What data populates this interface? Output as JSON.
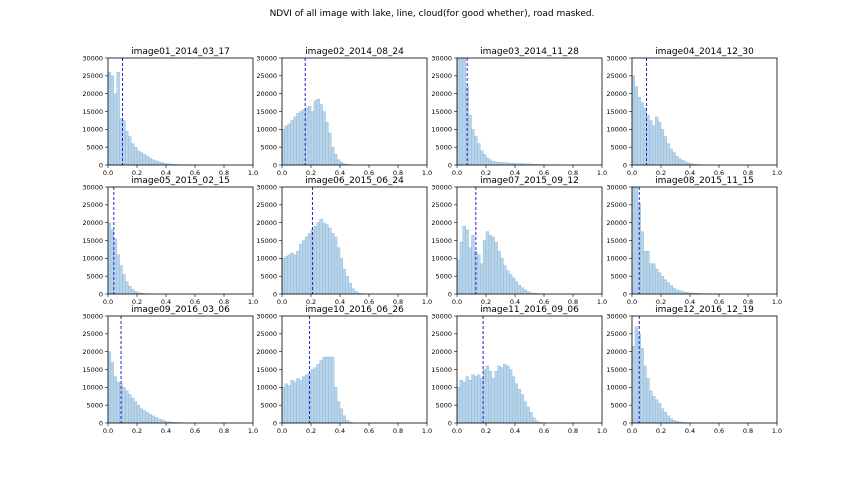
{
  "suptitle": "NDVI of all image with lake, line, cloud(for good whether), road masked.",
  "chart_data": {
    "type": "bar",
    "xlim": [
      0.0,
      1.0
    ],
    "ylim": [
      0,
      30000
    ],
    "x_ticks": [
      "0.0",
      "0.2",
      "0.4",
      "0.6",
      "0.8",
      "1.0"
    ],
    "y_ticks": [
      "0",
      "5000",
      "10000",
      "15000",
      "20000",
      "25000",
      "30000"
    ],
    "bin_width": 0.02,
    "bin_start": 0.0,
    "colors": {
      "bar_fill": "#b9d3e8",
      "bar_edge": "#7fb2d6",
      "mean_line": "#1f1fd6"
    },
    "panels": [
      {
        "title": "image01_2014_03_17",
        "mean": 0.1,
        "values": [
          26000,
          25000,
          20000,
          26000,
          13000,
          12500,
          9500,
          8000,
          6000,
          5000,
          4000,
          3500,
          3000,
          2500,
          2000,
          1500,
          1200,
          900,
          700,
          500,
          400,
          300,
          200,
          150,
          100,
          80,
          50,
          30,
          20,
          10
        ]
      },
      {
        "title": "image02_2014_08_24",
        "mean": 0.16,
        "values": [
          10000,
          11000,
          11500,
          12500,
          13500,
          14500,
          15000,
          15500,
          16000,
          16500,
          15000,
          18000,
          18500,
          17000,
          15000,
          12000,
          9000,
          5000,
          3000,
          1500,
          800,
          400,
          200,
          100,
          50
        ]
      },
      {
        "title": "image03_2014_11_28",
        "mean": 0.07,
        "values": [
          30000,
          30000,
          30000,
          22000,
          14000,
          10000,
          8000,
          6000,
          4000,
          3000,
          2000,
          1500,
          1000,
          900,
          800,
          700,
          600,
          600,
          500,
          500,
          400,
          400,
          400,
          300,
          300,
          300,
          200,
          200,
          150,
          100,
          100,
          80,
          60,
          40,
          20
        ]
      },
      {
        "title": "image04_2014_12_30",
        "mean": 0.1,
        "values": [
          25000,
          22000,
          19000,
          17500,
          16000,
          14000,
          12500,
          11000,
          13500,
          12000,
          10000,
          8000,
          6000,
          4500,
          3500,
          2500,
          1800,
          1300,
          900,
          600,
          400,
          250,
          150,
          100,
          50
        ]
      },
      {
        "title": "image05_2015_02_15",
        "mean": 0.04,
        "values": [
          20000,
          18000,
          15500,
          11000,
          8000,
          5500,
          3500,
          2200,
          1300,
          700,
          400,
          250,
          150,
          80,
          40,
          20
        ]
      },
      {
        "title": "image06_2015_06_24",
        "mean": 0.21,
        "values": [
          10000,
          10500,
          11000,
          11500,
          11000,
          12000,
          14000,
          15000,
          16000,
          17000,
          18000,
          19000,
          20000,
          21000,
          20000,
          19500,
          18500,
          17000,
          16000,
          13000,
          10000,
          7000,
          5000,
          3000,
          1500,
          700,
          300,
          100
        ]
      },
      {
        "title": "image07_2015_09_12",
        "mean": 0.13,
        "values": [
          9500,
          14500,
          19000,
          18000,
          13000,
          16500,
          12000,
          11000,
          8500,
          15000,
          17500,
          16500,
          16000,
          14500,
          12000,
          10000,
          8000,
          6500,
          5500,
          4500,
          3500,
          2500,
          1800,
          1200,
          700,
          400,
          250,
          150,
          80,
          40
        ]
      },
      {
        "title": "image08_2015_11_15",
        "mean": 0.05,
        "values": [
          30000,
          30000,
          25500,
          17500,
          12000,
          12000,
          8500,
          8500,
          7000,
          6000,
          5000,
          4000,
          3200,
          2400,
          1700,
          1200,
          900,
          700,
          500,
          400,
          300,
          250,
          200,
          150,
          100,
          80,
          60,
          40,
          30,
          20
        ]
      },
      {
        "title": "image09_2016_03_06",
        "mean": 0.09,
        "values": [
          20000,
          17000,
          13000,
          11500,
          11000,
          10000,
          9000,
          8000,
          7000,
          6000,
          5000,
          4000,
          3500,
          3000,
          2500,
          2000,
          1600,
          1200,
          900,
          600,
          400,
          300,
          200,
          150,
          100,
          60,
          30
        ]
      },
      {
        "title": "image10_2016_06_26",
        "mean": 0.19,
        "values": [
          10000,
          11000,
          10500,
          12000,
          11500,
          12500,
          12000,
          13000,
          13500,
          14000,
          15000,
          15500,
          16500,
          17500,
          18500,
          18500,
          18500,
          18500,
          10000,
          6000,
          4000,
          2000,
          800,
          300,
          100
        ]
      },
      {
        "title": "image11_2016_09_06",
        "mean": 0.18,
        "values": [
          10000,
          12000,
          11500,
          13000,
          12000,
          13500,
          13000,
          13500,
          12500,
          15000,
          16000,
          14500,
          12500,
          14500,
          16000,
          15500,
          16500,
          16000,
          15000,
          13000,
          11000,
          9500,
          8000,
          6000,
          4500,
          3000,
          1500,
          600,
          200
        ]
      },
      {
        "title": "image12_2016_12_19",
        "mean": 0.05,
        "values": [
          21500,
          27000,
          25000,
          21000,
          16000,
          12500,
          9000,
          7500,
          6500,
          5500,
          4000,
          3000,
          2000,
          1200,
          800,
          500,
          300,
          200,
          100,
          50
        ]
      }
    ]
  }
}
